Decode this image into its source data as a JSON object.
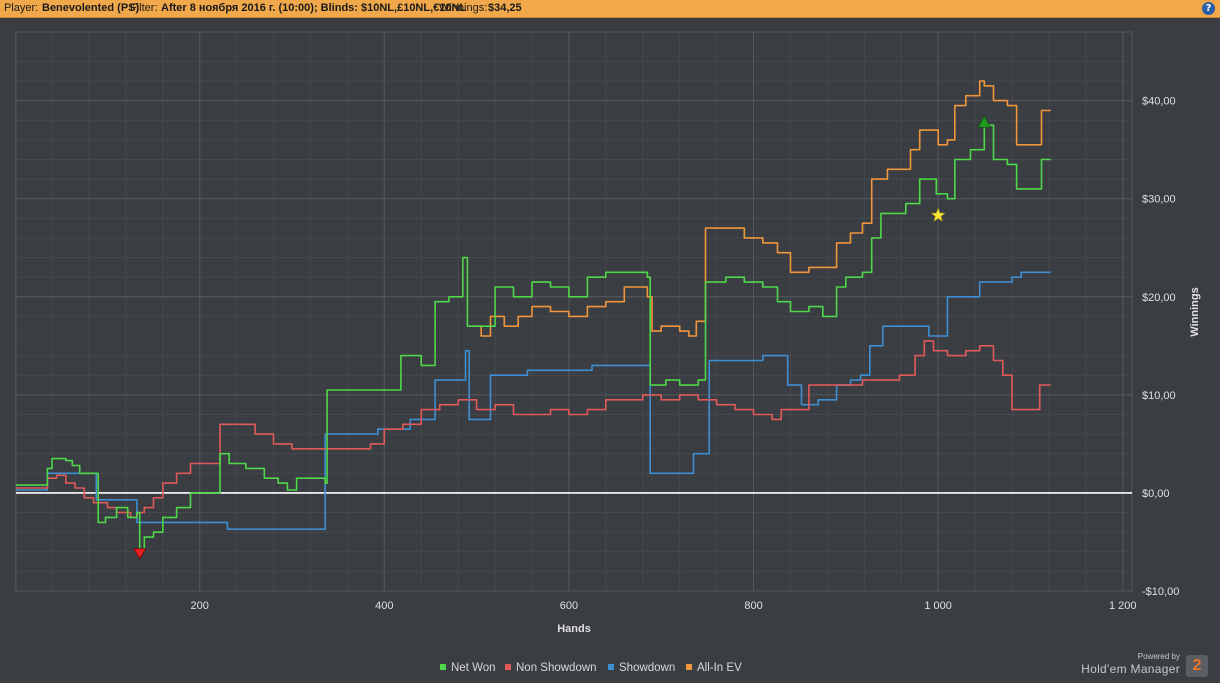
{
  "header": {
    "player_label": "Player:",
    "player_value": "Benevolented (PS)",
    "filter_label": "Filter:",
    "filter_value": "After 8 ноября 2016 г. (10:00); Blinds: $10NL,£10NL,€10NL",
    "winnings_label": "Winnings:",
    "winnings_value": "$34,25",
    "help_icon": "?"
  },
  "colors": {
    "net_won": "#4fd84a",
    "non_showdown": "#e05a5a",
    "showdown": "#3e8fd4",
    "all_in_ev": "#f0963c",
    "background": "#3a3d41",
    "grid": "#4a4d52"
  },
  "legend": [
    {
      "label": "Net Won",
      "color": "#4fd84a"
    },
    {
      "label": "Non Showdown",
      "color": "#e05a5a"
    },
    {
      "label": "Showdown",
      "color": "#3e8fd4"
    },
    {
      "label": "All-In EV",
      "color": "#f0963c"
    }
  ],
  "brand": {
    "powered": "Powered by",
    "name": "Hold'em Manager",
    "logo": "2"
  },
  "chart_data": {
    "type": "line",
    "xlabel": "Hands",
    "ylabel": "Winnings",
    "xlim": [
      1,
      1210
    ],
    "ylim": [
      -10,
      47
    ],
    "x_ticks": [
      200,
      400,
      600,
      800,
      1000,
      1200
    ],
    "x_tick_labels": [
      "200",
      "400",
      "600",
      "800",
      "1 000",
      "1 200"
    ],
    "y_ticks": [
      -10,
      0,
      10,
      20,
      30,
      40
    ],
    "y_tick_labels": [
      "-$10,00",
      "$0,00",
      "$10,00",
      "$20,00",
      "$30,00",
      "$40,00"
    ],
    "grid": true,
    "legend_position": "bottom",
    "series": [
      {
        "name": "Net Won",
        "points": [
          [
            1,
            0.8
          ],
          [
            30,
            0.8
          ],
          [
            35,
            2.5
          ],
          [
            40,
            3.5
          ],
          [
            55,
            3.3
          ],
          [
            62,
            2.8
          ],
          [
            70,
            2.0
          ],
          [
            85,
            2.0
          ],
          [
            90,
            -3
          ],
          [
            98,
            -2.5
          ],
          [
            110,
            -1.5
          ],
          [
            122,
            -2.5
          ],
          [
            132,
            -2
          ],
          [
            135,
            -5.8
          ],
          [
            140,
            -4.5
          ],
          [
            150,
            -4
          ],
          [
            160,
            -2.5
          ],
          [
            175,
            -1.5
          ],
          [
            190,
            0
          ],
          [
            215,
            0
          ],
          [
            222,
            4
          ],
          [
            232,
            3
          ],
          [
            250,
            2.5
          ],
          [
            270,
            1.5
          ],
          [
            285,
            1
          ],
          [
            295,
            0.3
          ],
          [
            305,
            1.5
          ],
          [
            320,
            1.5
          ],
          [
            336,
            1
          ],
          [
            338,
            10.5
          ],
          [
            360,
            10.5
          ],
          [
            380,
            10.5
          ],
          [
            395,
            10.5
          ],
          [
            418,
            14
          ],
          [
            440,
            13
          ],
          [
            455,
            19.5
          ],
          [
            470,
            20
          ],
          [
            485,
            24
          ],
          [
            490,
            17
          ],
          [
            500,
            17
          ],
          [
            520,
            21
          ],
          [
            540,
            20
          ],
          [
            560,
            21.5
          ],
          [
            580,
            21
          ],
          [
            600,
            20
          ],
          [
            620,
            22
          ],
          [
            640,
            22.5
          ],
          [
            660,
            22.5
          ],
          [
            685,
            22
          ],
          [
            688,
            11
          ],
          [
            705,
            11.5
          ],
          [
            720,
            11
          ],
          [
            740,
            11.5
          ],
          [
            748,
            21.5
          ],
          [
            770,
            22
          ],
          [
            790,
            21.5
          ],
          [
            810,
            21
          ],
          [
            826,
            19.5
          ],
          [
            840,
            18.5
          ],
          [
            860,
            19
          ],
          [
            875,
            18
          ],
          [
            890,
            21
          ],
          [
            900,
            22
          ],
          [
            918,
            22.5
          ],
          [
            928,
            26
          ],
          [
            938,
            28.5
          ],
          [
            955,
            28.5
          ],
          [
            965,
            29.5
          ],
          [
            980,
            32
          ],
          [
            998,
            30.5
          ],
          [
            1010,
            30
          ],
          [
            1018,
            34
          ],
          [
            1035,
            35
          ],
          [
            1050,
            37.5
          ],
          [
            1060,
            34
          ],
          [
            1075,
            33.5
          ],
          [
            1085,
            31
          ],
          [
            1100,
            31
          ],
          [
            1112,
            34
          ],
          [
            1122,
            34
          ]
        ]
      },
      {
        "name": "Non Showdown",
        "points": [
          [
            1,
            0.5
          ],
          [
            30,
            0.5
          ],
          [
            35,
            1.5
          ],
          [
            45,
            1.8
          ],
          [
            55,
            1
          ],
          [
            65,
            0.5
          ],
          [
            75,
            -0.5
          ],
          [
            85,
            -1
          ],
          [
            100,
            -1.5
          ],
          [
            110,
            -2
          ],
          [
            125,
            -2.5
          ],
          [
            132,
            -2
          ],
          [
            140,
            -1.5
          ],
          [
            150,
            -0.5
          ],
          [
            160,
            1
          ],
          [
            175,
            2
          ],
          [
            190,
            3
          ],
          [
            210,
            3
          ],
          [
            222,
            7
          ],
          [
            240,
            7
          ],
          [
            260,
            6
          ],
          [
            280,
            5
          ],
          [
            300,
            4.5
          ],
          [
            320,
            4.5
          ],
          [
            340,
            4.5
          ],
          [
            360,
            4.5
          ],
          [
            385,
            5
          ],
          [
            400,
            6.5
          ],
          [
            420,
            7
          ],
          [
            440,
            8.5
          ],
          [
            460,
            9
          ],
          [
            480,
            9.5
          ],
          [
            500,
            8.5
          ],
          [
            520,
            9
          ],
          [
            540,
            8
          ],
          [
            560,
            8
          ],
          [
            580,
            8.5
          ],
          [
            600,
            8
          ],
          [
            620,
            8.5
          ],
          [
            640,
            9.5
          ],
          [
            660,
            9.5
          ],
          [
            680,
            10
          ],
          [
            700,
            9.5
          ],
          [
            720,
            10
          ],
          [
            740,
            9.5
          ],
          [
            760,
            9
          ],
          [
            780,
            8.5
          ],
          [
            800,
            8
          ],
          [
            820,
            7.5
          ],
          [
            830,
            8.5
          ],
          [
            850,
            8.5
          ],
          [
            860,
            11
          ],
          [
            880,
            11
          ],
          [
            900,
            11
          ],
          [
            918,
            11.5
          ],
          [
            930,
            11.5
          ],
          [
            945,
            11.5
          ],
          [
            958,
            12
          ],
          [
            975,
            14
          ],
          [
            985,
            15.5
          ],
          [
            995,
            14.5
          ],
          [
            1010,
            14
          ],
          [
            1030,
            14.5
          ],
          [
            1045,
            15
          ],
          [
            1060,
            13.5
          ],
          [
            1070,
            12
          ],
          [
            1080,
            8.5
          ],
          [
            1092,
            8.5
          ],
          [
            1100,
            8.5
          ],
          [
            1110,
            11
          ],
          [
            1122,
            11
          ]
        ]
      },
      {
        "name": "Showdown",
        "points": [
          [
            1,
            0.3
          ],
          [
            30,
            0.3
          ],
          [
            35,
            2
          ],
          [
            85,
            2
          ],
          [
            88,
            -0.7
          ],
          [
            130,
            -0.7
          ],
          [
            132,
            -3
          ],
          [
            228,
            -3
          ],
          [
            230,
            -3.7
          ],
          [
            330,
            -3.7
          ],
          [
            336,
            6
          ],
          [
            390,
            6
          ],
          [
            393,
            6.5
          ],
          [
            425,
            6.5
          ],
          [
            428,
            7.5
          ],
          [
            450,
            7.5
          ],
          [
            455,
            11.5
          ],
          [
            480,
            11.5
          ],
          [
            488,
            14.5
          ],
          [
            492,
            7.5
          ],
          [
            510,
            7.5
          ],
          [
            515,
            12
          ],
          [
            550,
            12
          ],
          [
            555,
            12.5
          ],
          [
            620,
            12.5
          ],
          [
            625,
            13
          ],
          [
            685,
            13
          ],
          [
            688,
            2
          ],
          [
            730,
            2
          ],
          [
            735,
            4
          ],
          [
            748,
            4
          ],
          [
            752,
            13.5
          ],
          [
            800,
            13.5
          ],
          [
            810,
            14
          ],
          [
            830,
            14
          ],
          [
            837,
            11
          ],
          [
            852,
            9
          ],
          [
            870,
            9.5
          ],
          [
            890,
            11
          ],
          [
            905,
            11.5
          ],
          [
            916,
            12
          ],
          [
            926,
            15
          ],
          [
            938,
            15
          ],
          [
            940,
            17
          ],
          [
            985,
            17
          ],
          [
            990,
            16
          ],
          [
            1005,
            16
          ],
          [
            1010,
            20
          ],
          [
            1045,
            21.5
          ],
          [
            1080,
            22
          ],
          [
            1090,
            22.5
          ],
          [
            1122,
            22.5
          ]
        ]
      },
      {
        "name": "All-In EV",
        "points": [
          [
            495,
            17
          ],
          [
            505,
            16
          ],
          [
            515,
            18
          ],
          [
            530,
            17
          ],
          [
            545,
            18
          ],
          [
            560,
            19
          ],
          [
            580,
            18.5
          ],
          [
            600,
            18
          ],
          [
            620,
            19
          ],
          [
            640,
            19.5
          ],
          [
            660,
            21
          ],
          [
            685,
            20
          ],
          [
            690,
            16.5
          ],
          [
            700,
            17
          ],
          [
            720,
            16.5
          ],
          [
            730,
            16
          ],
          [
            738,
            17.5
          ],
          [
            748,
            27
          ],
          [
            770,
            27
          ],
          [
            790,
            26
          ],
          [
            810,
            25.5
          ],
          [
            826,
            24.5
          ],
          [
            840,
            22.5
          ],
          [
            860,
            23
          ],
          [
            875,
            23
          ],
          [
            890,
            25.5
          ],
          [
            905,
            26.5
          ],
          [
            918,
            27.5
          ],
          [
            928,
            32
          ],
          [
            945,
            33
          ],
          [
            960,
            33
          ],
          [
            970,
            35
          ],
          [
            980,
            37
          ],
          [
            1000,
            35.5
          ],
          [
            1010,
            36
          ],
          [
            1018,
            39.5
          ],
          [
            1030,
            40.5
          ],
          [
            1045,
            42
          ],
          [
            1050,
            41.5
          ],
          [
            1060,
            40
          ],
          [
            1075,
            39.5
          ],
          [
            1085,
            35.5
          ],
          [
            1100,
            35.5
          ],
          [
            1112,
            39
          ],
          [
            1122,
            39
          ]
        ]
      }
    ],
    "markers": [
      {
        "type": "min",
        "shape": "down-triangle",
        "x": 135,
        "y": -6.2,
        "color": "#e82020"
      },
      {
        "type": "max",
        "shape": "up-triangle",
        "x": 1050,
        "y": 37.8,
        "color": "#1f9a1f"
      },
      {
        "type": "milestone",
        "shape": "star",
        "x": 1000,
        "y": 28.3,
        "color": "#f5e43a"
      }
    ]
  }
}
